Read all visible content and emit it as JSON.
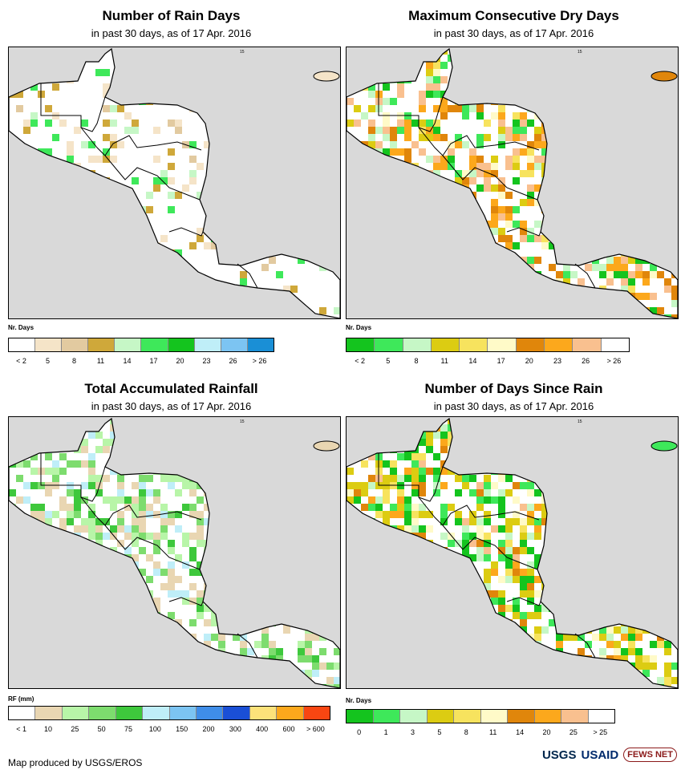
{
  "panels": [
    {
      "title": "Number of Rain Days",
      "subtitle": "in past 30 days, as of 17 Apr. 2016",
      "legend_title": "Nr. Days",
      "legend_colors": [
        "#ffffff",
        "#f5e4c8",
        "#e2caa0",
        "#cfa83a",
        "#c6f7c6",
        "#3ee85a",
        "#14c41e",
        "#bfeef8",
        "#7cc4f2",
        "#1a8fd6"
      ],
      "legend_labels": [
        "< 2",
        "5",
        "8",
        "11",
        "14",
        "17",
        "20",
        "23",
        "26",
        "> 26"
      ]
    },
    {
      "title": "Maximum Consecutive Dry Days",
      "subtitle": "in past 30 days, as of 17 Apr. 2016",
      "legend_title": "Nr. Days",
      "legend_colors": [
        "#14c41e",
        "#3ee85a",
        "#c6f7c6",
        "#dccc12",
        "#f7e35e",
        "#fffac8",
        "#e0860b",
        "#fca81c",
        "#f9c08f",
        "#ffffff"
      ],
      "legend_labels": [
        "< 2",
        "5",
        "8",
        "11",
        "14",
        "17",
        "20",
        "23",
        "26",
        "> 26"
      ]
    },
    {
      "title": "Total Accumulated Rainfall",
      "subtitle": "in past 30 days, as of 17 Apr. 2016",
      "legend_title": "RF (mm)",
      "legend_colors": [
        "#ffffff",
        "#e9d6b2",
        "#b8f5a8",
        "#7ddc6e",
        "#3ec83c",
        "#bfeef8",
        "#7cc4f2",
        "#3f8de8",
        "#1a4fd6",
        "#fce27a",
        "#fca81c",
        "#f84612"
      ],
      "legend_labels": [
        "< 1",
        "10",
        "25",
        "50",
        "75",
        "100",
        "150",
        "200",
        "300",
        "400",
        "600",
        "> 600"
      ]
    },
    {
      "title": "Number of Days Since Rain",
      "subtitle": "in past 30 days, as of 17 Apr. 2016",
      "legend_title": "Nr. Days",
      "legend_colors": [
        "#14c41e",
        "#3ee85a",
        "#c6f7c6",
        "#dccc12",
        "#f7e35e",
        "#fffac8",
        "#e0860b",
        "#fca81c",
        "#f9c08f",
        "#ffffff"
      ],
      "legend_labels": [
        "0",
        "1",
        "3",
        "5",
        "8",
        "11",
        "14",
        "20",
        "25",
        "> 25"
      ]
    }
  ],
  "map_gridline_label": "15",
  "footer": "Map produced by USGS/EROS",
  "logos": {
    "usgs": "USGS",
    "usaid": "USAID",
    "fews": "FEWS NET"
  }
}
